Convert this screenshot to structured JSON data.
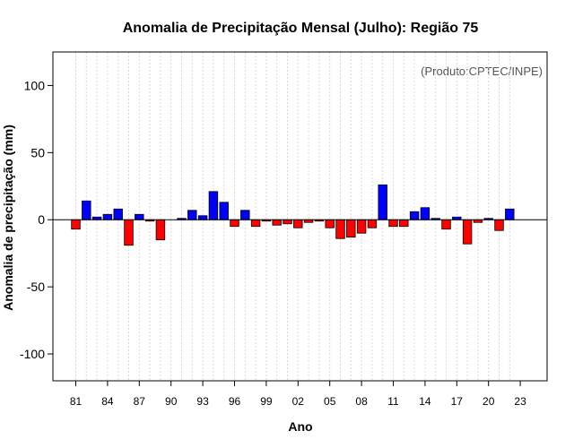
{
  "chart_data": {
    "type": "bar",
    "title": "Anomalia de Precipitação Mensal (Julho): Região 75",
    "xlabel": "Ano",
    "ylabel": "Anomalia de precipitação (mm)",
    "annotation": "(Produto:CPTEC/INPE)",
    "ylim": [
      -120,
      125
    ],
    "yticks": [
      -100,
      -50,
      0,
      50,
      100
    ],
    "xtick_labels": [
      "81",
      "84",
      "87",
      "90",
      "93",
      "96",
      "99",
      "02",
      "05",
      "08",
      "11",
      "14",
      "17",
      "20",
      "23"
    ],
    "grid": "vertical-dotted",
    "colors": {
      "positive": "#0000ff",
      "negative": "#ff0000",
      "zero_line": "#000000"
    },
    "categories": [
      "1981",
      "1982",
      "1983",
      "1984",
      "1985",
      "1986",
      "1987",
      "1988",
      "1989",
      "1990",
      "1991",
      "1992",
      "1993",
      "1994",
      "1995",
      "1996",
      "1997",
      "1998",
      "1999",
      "2000",
      "2001",
      "2002",
      "2003",
      "2004",
      "2005",
      "2006",
      "2007",
      "2008",
      "2009",
      "2010",
      "2011",
      "2012",
      "2013",
      "2014",
      "2015",
      "2016",
      "2017",
      "2018",
      "2019",
      "2020",
      "2021",
      "2022"
    ],
    "values": [
      -7,
      14,
      2,
      4,
      8,
      -19,
      4,
      -1,
      -15,
      0,
      1,
      7,
      3,
      21,
      13,
      -5,
      7,
      -5,
      -1,
      -4,
      -3,
      -6,
      -2,
      -1,
      -6,
      -14,
      -13,
      -10,
      -6,
      26,
      -5,
      -5,
      6,
      9,
      1,
      -7,
      2,
      -18,
      -2,
      1,
      -8,
      8
    ]
  }
}
